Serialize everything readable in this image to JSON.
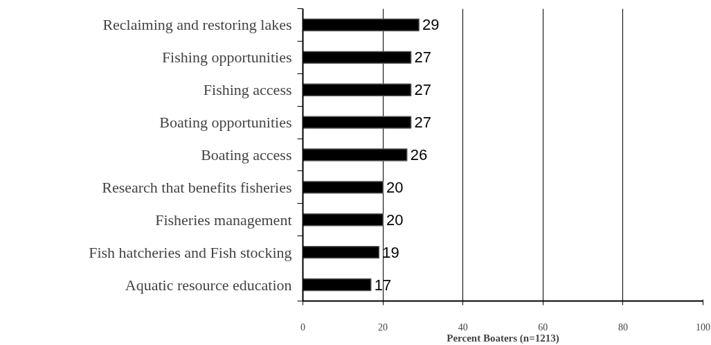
{
  "chart_data": {
    "type": "bar",
    "orientation": "horizontal",
    "xlabel": "Percent Boaters (n=1213)",
    "categories": [
      "Reclaiming and restoring lakes",
      "Fishing opportunities",
      "Fishing access",
      "Boating opportunities",
      "Boating access",
      "Research that benefits fisheries",
      "Fisheries management",
      "Fish hatcheries and Fish stocking",
      "Aquatic resource education"
    ],
    "values": [
      29,
      27,
      27,
      27,
      26,
      20,
      20,
      19,
      17
    ],
    "color": "#000000",
    "xlim": [
      0,
      100
    ],
    "xticks": [
      0,
      20,
      40,
      60,
      80,
      100
    ],
    "grid": "x",
    "data_labels": true
  }
}
